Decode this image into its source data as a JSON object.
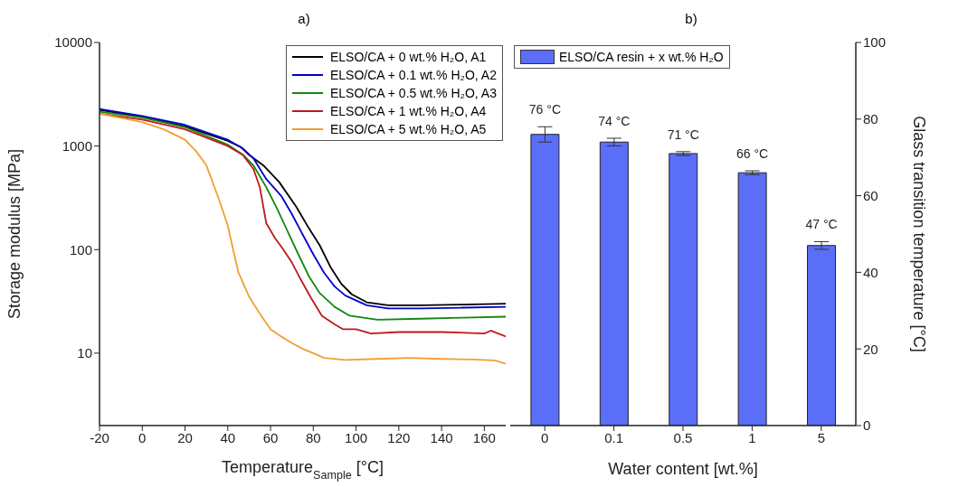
{
  "chart_data": [
    {
      "type": "line",
      "title": "a)",
      "xlabel": "Temperature$_{Sample}$ [°C]",
      "ylabel": "Storage modulus [MPa]",
      "log": "y",
      "xlim": [
        -20,
        170
      ],
      "xticks": [
        -20,
        0,
        20,
        40,
        60,
        80,
        100,
        120,
        140,
        160
      ],
      "ylim": [
        2,
        10000
      ],
      "yticks": [
        10,
        100,
        1000,
        10000
      ],
      "grid": false,
      "legend": "top right",
      "marker": "none",
      "line_style": "solid",
      "series": [
        {
          "name": "ELSO/CA + 0 wt.% H₂O, A1",
          "color": "#000000",
          "x": [
            -20,
            0,
            20,
            40,
            46,
            50,
            57,
            64,
            72,
            78,
            83,
            88,
            93,
            98,
            105,
            115,
            130,
            150,
            170
          ],
          "values": [
            2240,
            1900,
            1550,
            1120,
            980,
            820,
            640,
            450,
            260,
            160,
            110,
            68,
            47,
            37,
            31,
            29,
            29,
            29.5,
            30
          ]
        },
        {
          "name": "ELSO/CA + 0.1 wt.% H₂O, A2",
          "color": "#0000cc",
          "x": [
            -20,
            0,
            20,
            40,
            47,
            52,
            58,
            65,
            70,
            75,
            80,
            85,
            90,
            95,
            105,
            115,
            130,
            150,
            170
          ],
          "values": [
            2280,
            1950,
            1600,
            1150,
            950,
            760,
            480,
            330,
            220,
            140,
            90,
            60,
            44,
            36,
            29,
            27,
            27,
            27.5,
            28
          ]
        },
        {
          "name": "ELSO/CA + 0.5 wt.% H₂O, A3",
          "color": "#108a10",
          "x": [
            -20,
            0,
            20,
            40,
            47,
            52,
            58,
            63,
            68,
            73,
            78,
            83,
            90,
            97,
            110,
            130,
            150,
            170
          ],
          "values": [
            2150,
            1880,
            1520,
            1030,
            830,
            650,
            400,
            250,
            150,
            90,
            55,
            38,
            28,
            23,
            21,
            21.5,
            22,
            22.5
          ]
        },
        {
          "name": "ELSO/CA + 1 wt.% H₂O, A4",
          "color": "#c0181c",
          "x": [
            -20,
            0,
            20,
            40,
            47,
            52,
            55,
            58,
            62,
            66,
            70,
            74,
            79,
            84,
            90,
            94,
            100,
            107,
            120,
            140,
            160,
            163,
            170
          ],
          "values": [
            2050,
            1800,
            1450,
            1000,
            820,
            600,
            400,
            180,
            130,
            100,
            75,
            52,
            34,
            23,
            19,
            17,
            17,
            15.5,
            16,
            16,
            15.5,
            16.5,
            14.5
          ]
        },
        {
          "name": "ELSO/CA + 5 wt.% H₂O, A5",
          "color": "#f0a030",
          "x": [
            -20,
            0,
            10,
            20,
            25,
            30,
            36,
            40,
            42.5,
            45,
            50,
            55,
            60,
            65,
            70,
            75,
            80,
            85,
            95,
            110,
            125,
            140,
            155,
            165,
            170
          ],
          "values": [
            2050,
            1700,
            1450,
            1150,
            900,
            650,
            300,
            170,
            100,
            60,
            35,
            24,
            17,
            14.5,
            12.5,
            11,
            10,
            9,
            8.6,
            8.8,
            9,
            8.8,
            8.7,
            8.5,
            7.9
          ]
        }
      ]
    },
    {
      "type": "bar",
      "title": "b)",
      "xlabel": "Water content [wt.%]",
      "ylabel": "Glass transition temperature  [°C]",
      "categories": [
        "0",
        "0.1",
        "0.5",
        "1",
        "5"
      ],
      "ylim": [
        0,
        100
      ],
      "yticks": [
        0,
        20,
        40,
        60,
        80,
        100
      ],
      "grid": false,
      "legend": "top left",
      "series": [
        {
          "name": "ELSO/CA resin + x wt.% H₂O",
          "color": "#5b6ef8",
          "values": [
            76,
            74,
            71,
            66,
            47
          ],
          "errors": [
            2,
            1,
            0.5,
            0.5,
            1
          ],
          "value_labels": [
            "76 °C",
            "74 °C",
            "71 °C",
            "66 °C",
            "47 °C"
          ]
        }
      ]
    }
  ]
}
